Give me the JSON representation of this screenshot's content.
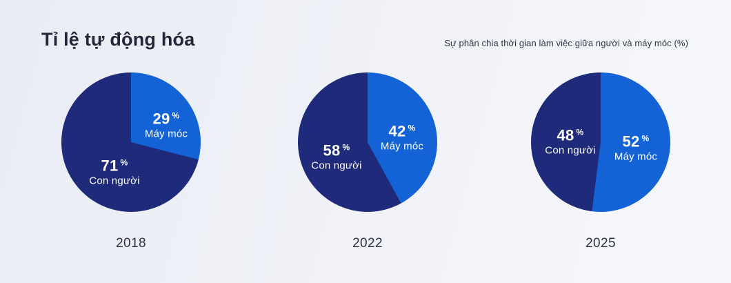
{
  "header": {
    "title": "Tỉ lệ tự động hóa",
    "subtitle": "Sự phân chia thời gian làm việc giữa người và máy móc (%)"
  },
  "ui": {
    "percent_symbol": "%"
  },
  "colors": {
    "machine_slice": "#1463d6",
    "human_slice": "#1f2b7a",
    "slice_label_text": "#ffffff",
    "heading_text": "#232839",
    "year_text": "#2c3245",
    "background_start": "#e9ecf4",
    "background_end": "#f7f8fc"
  },
  "chart_data": [
    {
      "type": "pie",
      "year": "2018",
      "legend_position": "inside",
      "slices": [
        {
          "label": "Máy móc",
          "value": 29
        },
        {
          "label": "Con người",
          "value": 71
        }
      ]
    },
    {
      "type": "pie",
      "year": "2022",
      "legend_position": "inside",
      "slices": [
        {
          "label": "Máy móc",
          "value": 42
        },
        {
          "label": "Con người",
          "value": 58
        }
      ]
    },
    {
      "type": "pie",
      "year": "2025",
      "legend_position": "inside",
      "slices": [
        {
          "label": "Máy móc",
          "value": 52
        },
        {
          "label": "Con người",
          "value": 48
        }
      ]
    }
  ]
}
